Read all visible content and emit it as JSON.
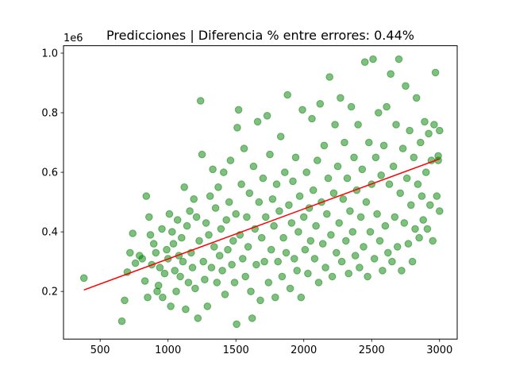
{
  "chart_data": {
    "type": "scatter",
    "title": "Predicciones | Diferencia % entre errores: 0.44%",
    "xlabel": "",
    "ylabel": "",
    "y_offset_label": "1e6",
    "xlim": [
      230,
      3130
    ],
    "ylim": [
      0.04,
      1.025
    ],
    "x_ticks": [
      500,
      1000,
      1500,
      2000,
      2500,
      3000
    ],
    "x_tick_labels": [
      "500",
      "1000",
      "1500",
      "2000",
      "2500",
      "3000"
    ],
    "y_ticks": [
      0.2,
      0.4,
      0.6,
      0.8,
      1.0
    ],
    "y_tick_labels": [
      "0.2",
      "0.4",
      "0.6",
      "0.8",
      "1.0"
    ],
    "grid": false,
    "colors": {
      "points": "#008000",
      "line": "#ff0000"
    },
    "series": [
      {
        "kind": "points",
        "points": [
          [
            380,
            0.245
          ],
          [
            660,
            0.1
          ],
          [
            680,
            0.17
          ],
          [
            700,
            0.265
          ],
          [
            720,
            0.33
          ],
          [
            740,
            0.395
          ],
          [
            760,
            0.295
          ],
          [
            790,
            0.32
          ],
          [
            810,
            0.31
          ],
          [
            830,
            0.235
          ],
          [
            840,
            0.52
          ],
          [
            850,
            0.18
          ],
          [
            860,
            0.45
          ],
          [
            870,
            0.39
          ],
          [
            880,
            0.29
          ],
          [
            895,
            0.36
          ],
          [
            910,
            0.33
          ],
          [
            920,
            0.2
          ],
          [
            930,
            0.22
          ],
          [
            940,
            0.28
          ],
          [
            955,
            0.41
          ],
          [
            960,
            0.18
          ],
          [
            975,
            0.26
          ],
          [
            990,
            0.34
          ],
          [
            1000,
            0.31
          ],
          [
            1010,
            0.46
          ],
          [
            1020,
            0.15
          ],
          [
            1030,
            0.4
          ],
          [
            1040,
            0.36
          ],
          [
            1050,
            0.27
          ],
          [
            1060,
            0.2
          ],
          [
            1070,
            0.44
          ],
          [
            1080,
            0.32
          ],
          [
            1090,
            0.25
          ],
          [
            1100,
            0.38
          ],
          [
            1110,
            0.3
          ],
          [
            1120,
            0.55
          ],
          [
            1130,
            0.14
          ],
          [
            1140,
            0.42
          ],
          [
            1150,
            0.23
          ],
          [
            1160,
            0.47
          ],
          [
            1170,
            0.33
          ],
          [
            1180,
            0.28
          ],
          [
            1190,
            0.51
          ],
          [
            1200,
            0.21
          ],
          [
            1210,
            0.45
          ],
          [
            1220,
            0.11
          ],
          [
            1230,
            0.37
          ],
          [
            1240,
            0.84
          ],
          [
            1250,
            0.66
          ],
          [
            1260,
            0.3
          ],
          [
            1270,
            0.24
          ],
          [
            1280,
            0.43
          ],
          [
            1290,
            0.15
          ],
          [
            1300,
            0.39
          ],
          [
            1310,
            0.52
          ],
          [
            1320,
            0.28
          ],
          [
            1330,
            0.61
          ],
          [
            1340,
            0.35
          ],
          [
            1350,
            0.48
          ],
          [
            1360,
            0.23
          ],
          [
            1370,
            0.55
          ],
          [
            1380,
            0.32
          ],
          [
            1390,
            0.41
          ],
          [
            1400,
            0.27
          ],
          [
            1410,
            0.6
          ],
          [
            1420,
            0.19
          ],
          [
            1430,
            0.44
          ],
          [
            1440,
            0.34
          ],
          [
            1450,
            0.5
          ],
          [
            1460,
            0.64
          ],
          [
            1470,
            0.29
          ],
          [
            1480,
            0.37
          ],
          [
            1490,
            0.23
          ],
          [
            1500,
            0.46
          ],
          [
            1505,
            0.09
          ],
          [
            1510,
            0.75
          ],
          [
            1520,
            0.81
          ],
          [
            1530,
            0.39
          ],
          [
            1540,
            0.56
          ],
          [
            1550,
            0.31
          ],
          [
            1560,
            0.68
          ],
          [
            1570,
            0.25
          ],
          [
            1580,
            0.45
          ],
          [
            1590,
            0.35
          ],
          [
            1600,
            0.53
          ],
          [
            1610,
            0.2
          ],
          [
            1620,
            0.11
          ],
          [
            1630,
            0.62
          ],
          [
            1640,
            0.41
          ],
          [
            1650,
            0.29
          ],
          [
            1660,
            0.77
          ],
          [
            1670,
            0.5
          ],
          [
            1680,
            0.17
          ],
          [
            1690,
            0.38
          ],
          [
            1700,
            0.58
          ],
          [
            1710,
            0.3
          ],
          [
            1720,
            0.45
          ],
          [
            1730,
            0.79
          ],
          [
            1740,
            0.23
          ],
          [
            1750,
            0.66
          ],
          [
            1760,
            0.34
          ],
          [
            1770,
            0.51
          ],
          [
            1780,
            0.42
          ],
          [
            1790,
            0.18
          ],
          [
            1800,
            0.56
          ],
          [
            1810,
            0.3
          ],
          [
            1820,
            0.47
          ],
          [
            1830,
            0.72
          ],
          [
            1840,
            0.25
          ],
          [
            1850,
            0.38
          ],
          [
            1860,
            0.6
          ],
          [
            1870,
            0.33
          ],
          [
            1880,
            0.86
          ],
          [
            1890,
            0.49
          ],
          [
            1900,
            0.21
          ],
          [
            1910,
            0.43
          ],
          [
            1920,
            0.57
          ],
          [
            1930,
            0.31
          ],
          [
            1940,
            0.65
          ],
          [
            1950,
            0.27
          ],
          [
            1960,
            0.4
          ],
          [
            1970,
            0.52
          ],
          [
            1980,
            0.18
          ],
          [
            1990,
            0.81
          ],
          [
            2000,
            0.45
          ],
          [
            2010,
            0.34
          ],
          [
            2020,
            0.6
          ],
          [
            2030,
            0.26
          ],
          [
            2040,
            0.48
          ],
          [
            2050,
            0.37
          ],
          [
            2060,
            0.78
          ],
          [
            2070,
            0.54
          ],
          [
            2080,
            0.31
          ],
          [
            2090,
            0.42
          ],
          [
            2100,
            0.64
          ],
          [
            2110,
            0.23
          ],
          [
            2120,
            0.83
          ],
          [
            2130,
            0.5
          ],
          [
            2140,
            0.36
          ],
          [
            2150,
            0.69
          ],
          [
            2160,
            0.28
          ],
          [
            2170,
            0.46
          ],
          [
            2180,
            0.58
          ],
          [
            2190,
            0.92
          ],
          [
            2200,
            0.39
          ],
          [
            2210,
            0.25
          ],
          [
            2220,
            0.53
          ],
          [
            2230,
            0.76
          ],
          [
            2240,
            0.33
          ],
          [
            2250,
            0.62
          ],
          [
            2260,
            0.43
          ],
          [
            2270,
            0.85
          ],
          [
            2280,
            0.3
          ],
          [
            2290,
            0.51
          ],
          [
            2300,
            0.7
          ],
          [
            2310,
            0.37
          ],
          [
            2320,
            0.58
          ],
          [
            2330,
            0.26
          ],
          [
            2340,
            0.47
          ],
          [
            2350,
            0.82
          ],
          [
            2360,
            0.4
          ],
          [
            2370,
            0.65
          ],
          [
            2380,
            0.32
          ],
          [
            2390,
            0.54
          ],
          [
            2400,
            0.76
          ],
          [
            2410,
            0.28
          ],
          [
            2420,
            0.45
          ],
          [
            2430,
            0.61
          ],
          [
            2440,
            0.35
          ],
          [
            2450,
            0.97
          ],
          [
            2460,
            0.5
          ],
          [
            2470,
            0.25
          ],
          [
            2480,
            0.7
          ],
          [
            2490,
            0.4
          ],
          [
            2500,
            0.56
          ],
          [
            2510,
            0.98
          ],
          [
            2520,
            0.31
          ],
          [
            2530,
            0.65
          ],
          [
            2540,
            0.46
          ],
          [
            2550,
            0.8
          ],
          [
            2560,
            0.37
          ],
          [
            2570,
            0.59
          ],
          [
            2580,
            0.27
          ],
          [
            2590,
            0.69
          ],
          [
            2600,
            0.42
          ],
          [
            2610,
            0.82
          ],
          [
            2620,
            0.33
          ],
          [
            2630,
            0.56
          ],
          [
            2640,
            0.93
          ],
          [
            2650,
            0.3
          ],
          [
            2660,
            0.62
          ],
          [
            2670,
            0.45
          ],
          [
            2680,
            0.76
          ],
          [
            2690,
            0.35
          ],
          [
            2700,
            0.98
          ],
          [
            2710,
            0.53
          ],
          [
            2720,
            0.27
          ],
          [
            2730,
            0.68
          ],
          [
            2740,
            0.43
          ],
          [
            2750,
            0.89
          ],
          [
            2760,
            0.58
          ],
          [
            2770,
            0.36
          ],
          [
            2780,
            0.74
          ],
          [
            2790,
            0.49
          ],
          [
            2800,
            0.3
          ],
          [
            2810,
            0.65
          ],
          [
            2820,
            0.41
          ],
          [
            2830,
            0.85
          ],
          [
            2840,
            0.56
          ],
          [
            2850,
            0.38
          ],
          [
            2860,
            0.7
          ],
          [
            2870,
            0.52
          ],
          [
            2880,
            0.44
          ],
          [
            2890,
            0.77
          ],
          [
            2900,
            0.6
          ],
          [
            2910,
            0.41
          ],
          [
            2920,
            0.73
          ],
          [
            2930,
            0.49
          ],
          [
            2940,
            0.64
          ],
          [
            2950,
            0.37
          ],
          [
            2960,
            0.76
          ],
          [
            2970,
            0.935
          ],
          [
            2980,
            0.52
          ],
          [
            2990,
            0.64
          ],
          [
            3000,
            0.47
          ],
          [
            3000,
            0.74
          ],
          [
            2990,
            0.655
          ]
        ]
      },
      {
        "kind": "fit-line",
        "points": [
          [
            380,
            0.205
          ],
          [
            3000,
            0.645
          ]
        ]
      }
    ]
  }
}
